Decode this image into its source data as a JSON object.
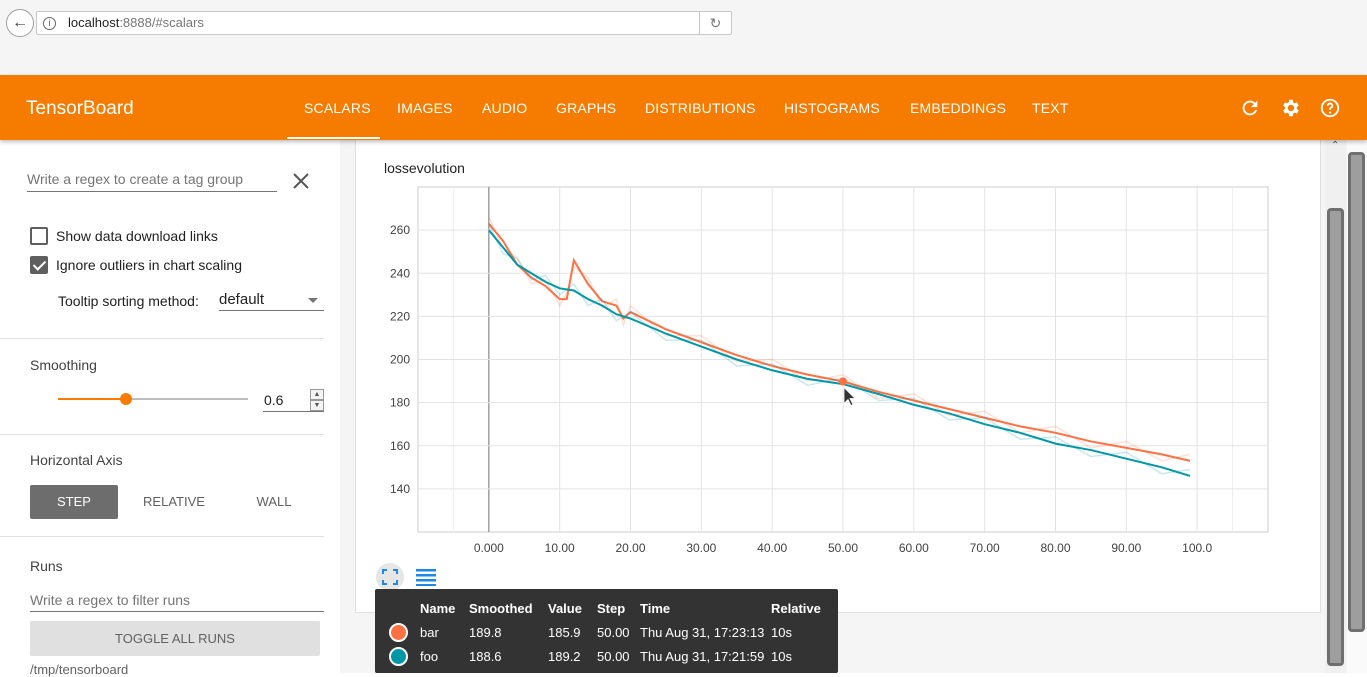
{
  "browser": {
    "url_host": "localhost",
    "url_rest": ":8888/#scalars"
  },
  "header": {
    "title": "TensorBoard",
    "tabs": [
      "SCALARS",
      "IMAGES",
      "AUDIO",
      "GRAPHS",
      "DISTRIBUTIONS",
      "HISTOGRAMS",
      "EMBEDDINGS",
      "TEXT"
    ],
    "active_tab": "SCALARS",
    "icons": [
      "reload-icon",
      "settings-icon",
      "help-icon"
    ]
  },
  "sidebar": {
    "tag_group_placeholder": "Write a regex to create a tag group",
    "show_download_links": {
      "label": "Show data download links",
      "checked": false
    },
    "ignore_outliers": {
      "label": "Ignore outliers in chart scaling",
      "checked": true
    },
    "tooltip_sort_label": "Tooltip sorting method:",
    "tooltip_sort_value": "default",
    "smoothing_title": "Smoothing",
    "smoothing_value": "0.6",
    "horizontal_axis_title": "Horizontal Axis",
    "axis_options": [
      "STEP",
      "RELATIVE",
      "WALL"
    ],
    "axis_selected": "STEP",
    "runs_title": "Runs",
    "runs_filter_placeholder": "Write a regex to filter runs",
    "toggle_all_runs": "TOGGLE ALL RUNS",
    "logdir": "/tmp/tensorboard"
  },
  "colors": {
    "accent": "#f57c00",
    "bar": "#ff7043",
    "foo": "#0097a7"
  },
  "chart_data": {
    "type": "line",
    "title": "lossevolution",
    "x_tick_labels": [
      "0.000",
      "10.00",
      "20.00",
      "30.00",
      "40.00",
      "50.00",
      "60.00",
      "70.00",
      "80.00",
      "90.00",
      "100.0"
    ],
    "y_tick_labels": [
      "140",
      "160",
      "180",
      "200",
      "220",
      "240",
      "260"
    ],
    "xlim": [
      -10,
      110
    ],
    "ylim": [
      120,
      280
    ],
    "grid": true,
    "series": [
      {
        "name": "bar",
        "color": "#ff7043",
        "x": [
          0,
          2,
          4,
          6,
          8,
          10,
          11,
          12,
          14,
          16,
          18,
          19,
          20,
          25,
          30,
          35,
          40,
          45,
          50,
          55,
          60,
          65,
          70,
          75,
          80,
          85,
          90,
          95,
          99
        ],
        "y": [
          263,
          255,
          244,
          238,
          234,
          228,
          228,
          246,
          235,
          227,
          225,
          219,
          222,
          214,
          208,
          202,
          197,
          193,
          189.8,
          185,
          181,
          177,
          173,
          169,
          166,
          162,
          159,
          156,
          153
        ]
      },
      {
        "name": "foo",
        "color": "#0097a7",
        "x": [
          0,
          2,
          4,
          6,
          8,
          10,
          12,
          14,
          16,
          18,
          20,
          25,
          30,
          35,
          40,
          45,
          50,
          55,
          60,
          65,
          70,
          75,
          80,
          85,
          90,
          95,
          99
        ],
        "y": [
          260,
          252,
          244,
          240,
          236,
          233,
          232,
          228,
          225,
          221,
          219,
          212,
          206,
          200,
          195,
          191,
          188.6,
          184,
          179,
          175,
          170,
          166,
          161,
          158,
          154,
          150,
          146
        ]
      }
    ],
    "hover_point": {
      "x": 50,
      "y": 189.8
    }
  },
  "tooltip": {
    "headers": [
      "Name",
      "Smoothed",
      "Value",
      "Step",
      "Time",
      "Relative"
    ],
    "rows": [
      {
        "name": "bar",
        "smoothed": "189.8",
        "value": "185.9",
        "step": "50.00",
        "time": "Thu Aug 31, 17:23:13",
        "relative": "10s",
        "color": "#ff7043"
      },
      {
        "name": "foo",
        "smoothed": "188.6",
        "value": "189.2",
        "step": "50.00",
        "time": "Thu Aug 31, 17:21:59",
        "relative": "10s",
        "color": "#0097a7"
      }
    ]
  }
}
